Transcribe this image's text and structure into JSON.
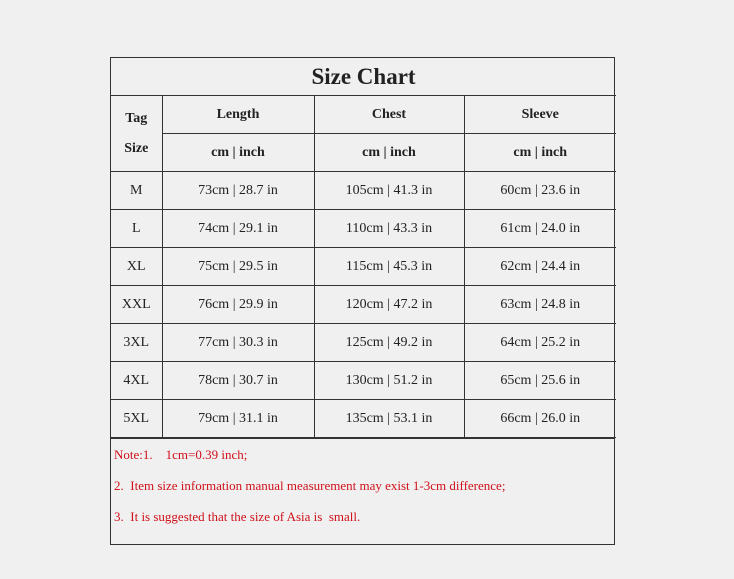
{
  "title": "Size Chart",
  "headers": {
    "tag_size": [
      "Tag",
      "Size"
    ],
    "columns": [
      "Length",
      "Chest",
      "Sleeve"
    ],
    "units": [
      "cm | inch",
      "cm | inch",
      "cm | inch"
    ]
  },
  "rows": [
    {
      "size": "M",
      "length": "73cm | 28.7 in",
      "chest": "105cm | 41.3 in",
      "sleeve": "60cm | 23.6 in"
    },
    {
      "size": "L",
      "length": "74cm | 29.1 in",
      "chest": "110cm | 43.3 in",
      "sleeve": "61cm | 24.0 in"
    },
    {
      "size": "XL",
      "length": "75cm | 29.5 in",
      "chest": "115cm | 45.3 in",
      "sleeve": "62cm | 24.4 in"
    },
    {
      "size": "XXL",
      "length": "76cm | 29.9 in",
      "chest": "120cm | 47.2 in",
      "sleeve": "63cm | 24.8 in"
    },
    {
      "size": "3XL",
      "length": "77cm | 30.3 in",
      "chest": "125cm | 49.2 in",
      "sleeve": "64cm | 25.2 in"
    },
    {
      "size": "4XL",
      "length": "78cm | 30.7 in",
      "chest": "130cm | 51.2 in",
      "sleeve": "65cm | 25.6 in"
    },
    {
      "size": "5XL",
      "length": "79cm | 31.1 in",
      "chest": "135cm | 53.1 in",
      "sleeve": "66cm | 26.0 in"
    }
  ],
  "notes": [
    "Note:1.    1cm=0.39 inch;",
    "2.  Item size information manual measurement may exist 1-3cm difference;",
    "3.  It is suggested that the size of Asia is  small."
  ],
  "colors": {
    "note_text": "#d0101a",
    "border": "#333333",
    "background": "#f0f0f0"
  }
}
